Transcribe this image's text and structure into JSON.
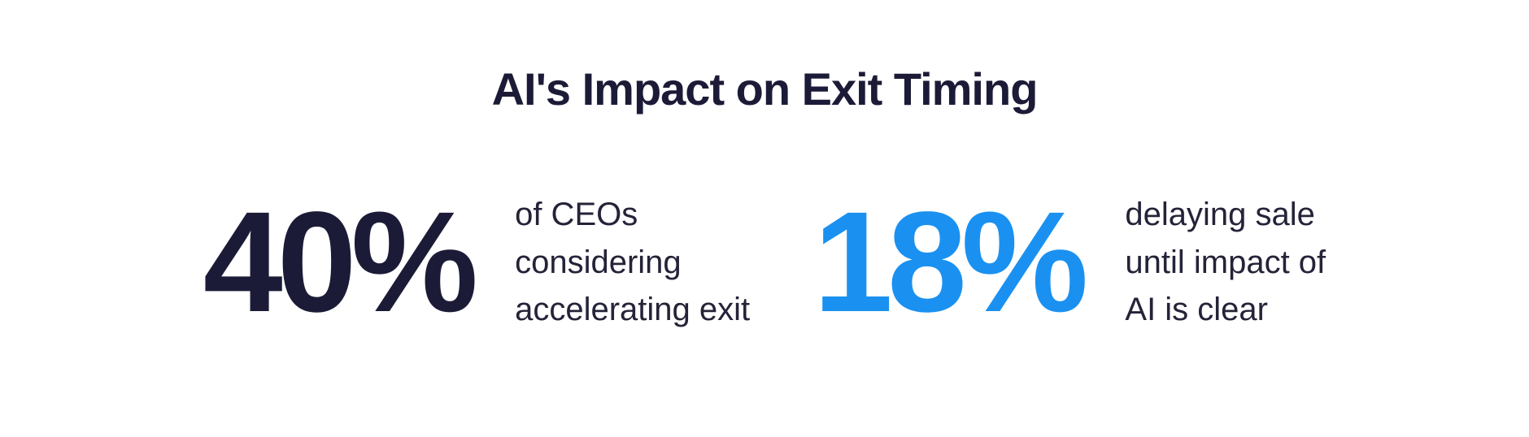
{
  "title": "AI's Impact on Exit Timing",
  "stats": [
    {
      "value": "40%",
      "lines": [
        "of CEOs",
        "considering",
        "accelerating exit"
      ],
      "color": "#1c1b37"
    },
    {
      "value": "18%",
      "lines": [
        "delaying sale",
        "until impact of",
        "AI is clear"
      ],
      "color": "#1a91f0"
    }
  ],
  "colors": {
    "background": "#ffffff",
    "navy": "#1c1b37",
    "blue": "#1a91f0",
    "text": "#242338"
  },
  "chart_data": {
    "type": "table",
    "title": "AI's Impact on Exit Timing",
    "categories": [
      "of CEOs considering accelerating exit",
      "delaying sale until impact of AI is clear"
    ],
    "values": [
      40,
      18
    ],
    "unit": "%"
  }
}
